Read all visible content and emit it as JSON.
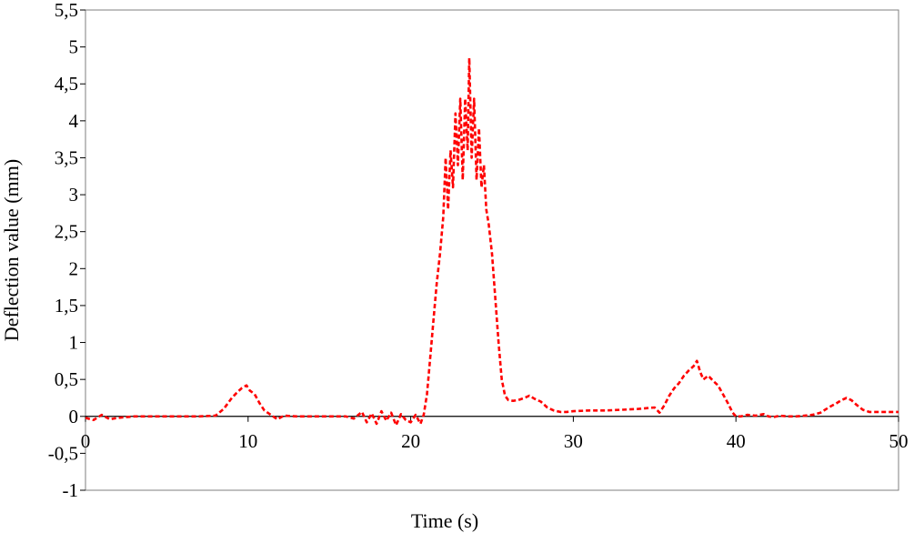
{
  "chart_data": {
    "type": "line",
    "title": "",
    "xlabel": "Time (s)",
    "ylabel": "Deflection value (mm)",
    "xlim": [
      0,
      50
    ],
    "ylim": [
      -1,
      5.5
    ],
    "grid": false,
    "legend": "none",
    "x_ticks": [
      0,
      10,
      20,
      30,
      40,
      50
    ],
    "x_tick_labels": [
      "0",
      "10",
      "20",
      "30",
      "40",
      "50"
    ],
    "y_ticks": [
      -1,
      -0.5,
      0,
      0.5,
      1,
      1.5,
      2,
      2.5,
      3,
      3.5,
      4,
      4.5,
      5,
      5.5
    ],
    "y_tick_labels": [
      "-1",
      "-0,5",
      "0",
      "0,5",
      "1",
      "1,5",
      "2",
      "2,5",
      "3",
      "3,5",
      "4",
      "4,5",
      "5",
      "5,5"
    ],
    "series_color": "#ff0000",
    "line_style": "dashed",
    "series": [
      {
        "x": [
          0,
          0.5,
          1,
          1.5,
          2,
          3,
          4,
          5,
          6,
          7,
          8,
          8.5,
          9,
          9.3,
          9.6,
          9.9,
          10.1,
          10.4,
          10.7,
          11,
          11.4,
          11.8,
          12.2,
          13,
          14,
          15,
          16,
          16.5,
          17,
          17.3,
          17.6,
          17.9,
          18.2,
          18.5,
          18.8,
          19.1,
          19.4,
          19.7,
          20,
          20.3,
          20.6,
          20.8,
          21,
          21.2,
          21.4,
          21.6,
          21.8,
          22,
          22.15,
          22.3,
          22.45,
          22.6,
          22.75,
          22.9,
          23.05,
          23.2,
          23.35,
          23.5,
          23.6,
          23.75,
          23.9,
          24.05,
          24.2,
          24.35,
          24.5,
          24.65,
          24.8,
          25,
          25.2,
          25.4,
          25.6,
          25.8,
          26,
          26.3,
          26.6,
          27,
          27.3,
          27.6,
          28,
          28.4,
          28.8,
          29.2,
          29.6,
          30,
          31,
          32,
          33,
          34,
          35,
          35.3,
          35.6,
          35.9,
          36.2,
          36.5,
          36.8,
          37.1,
          37.4,
          37.6,
          37.8,
          38,
          38.3,
          38.6,
          38.9,
          39.2,
          39.5,
          39.8,
          40,
          40.3,
          40.7,
          41.2,
          41.7,
          42,
          42.3,
          42.7,
          43.2,
          43.7,
          44.2,
          44.7,
          45.2,
          45.7,
          46.2,
          46.5,
          46.8,
          47.1,
          47.4,
          47.8,
          48.2,
          49,
          50
        ],
        "y": [
          -0.02,
          -0.05,
          0.02,
          -0.04,
          -0.02,
          0,
          0,
          0,
          0,
          0,
          0.01,
          0.1,
          0.25,
          0.32,
          0.38,
          0.42,
          0.35,
          0.3,
          0.18,
          0.08,
          0.02,
          -0.04,
          0.01,
          0,
          0,
          0,
          0,
          -0.03,
          0.06,
          -0.08,
          0.04,
          -0.1,
          0.07,
          -0.06,
          0.05,
          -0.12,
          0.03,
          -0.05,
          -0.08,
          0.02,
          -0.1,
          0.02,
          0.3,
          0.8,
          1.3,
          1.8,
          2.2,
          2.7,
          3.5,
          2.8,
          3.6,
          3.1,
          4.1,
          3.4,
          4.3,
          3.2,
          4.3,
          3.6,
          4.85,
          3.5,
          4.3,
          3.2,
          3.9,
          3.1,
          3.4,
          2.8,
          2.6,
          2.2,
          1.6,
          1.0,
          0.5,
          0.28,
          0.22,
          0.21,
          0.22,
          0.25,
          0.28,
          0.24,
          0.2,
          0.12,
          0.08,
          0.06,
          0.06,
          0.07,
          0.08,
          0.08,
          0.09,
          0.1,
          0.12,
          0.05,
          0.15,
          0.28,
          0.38,
          0.45,
          0.55,
          0.62,
          0.68,
          0.75,
          0.6,
          0.5,
          0.55,
          0.48,
          0.42,
          0.3,
          0.18,
          0.05,
          0,
          0,
          0.02,
          0.01,
          0.03,
          0,
          -0.01,
          0.01,
          0,
          0,
          0.01,
          0.02,
          0.05,
          0.12,
          0.18,
          0.22,
          0.25,
          0.22,
          0.16,
          0.09,
          0.06,
          0.06,
          0.06
        ]
      }
    ]
  }
}
